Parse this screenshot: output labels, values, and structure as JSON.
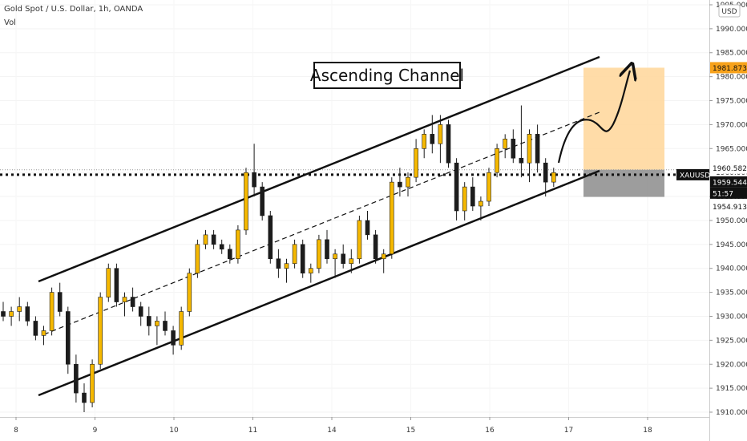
{
  "legend": {
    "symbol_line": "Gold Spot / U.S. Dollar, 1h, OANDA",
    "volume_label": "Vol"
  },
  "currency_button": "USD",
  "colors": {
    "bull": "#f5b800",
    "bear": "#1c1c1c",
    "target_zone": "#ffd699",
    "stop_zone": "#8c8c8c",
    "current_price_tag": "#111111",
    "target_price_tag": "#f7a21b"
  },
  "chart_data": {
    "type": "candlestick",
    "annotation_title": "Ascending Channel",
    "x_ticks": [
      "8",
      "9",
      "10",
      "11",
      "14",
      "15",
      "16",
      "17",
      "18"
    ],
    "y_ticks": [
      1995,
      1990,
      1985,
      1980,
      1975,
      1970,
      1965,
      1960,
      1955,
      1950,
      1945,
      1940,
      1935,
      1930,
      1925,
      1920,
      1915,
      1910
    ],
    "y_range": [
      1909,
      1996
    ],
    "price_labels": {
      "target": "1981.873",
      "upper_zone": "1960.582",
      "symbol": "XAUUSD",
      "current": "1959.544",
      "countdown": "51:57",
      "lower_zone": "1954.913"
    },
    "current_price": 1959.544,
    "upper_zone_price": 1960.582,
    "target_price": 1981.873,
    "lower_zone_price": 1954.913,
    "candles": [
      [
        1931,
        1933,
        1929,
        1930
      ],
      [
        1930,
        1932,
        1928,
        1931
      ],
      [
        1931,
        1934,
        1929,
        1932
      ],
      [
        1932,
        1933,
        1928,
        1929
      ],
      [
        1929,
        1930,
        1925,
        1926
      ],
      [
        1926,
        1928,
        1924,
        1927
      ],
      [
        1927,
        1936,
        1926,
        1935
      ],
      [
        1935,
        1937,
        1930,
        1931
      ],
      [
        1931,
        1932,
        1918,
        1920
      ],
      [
        1920,
        1922,
        1912,
        1914
      ],
      [
        1914,
        1916,
        1910,
        1912
      ],
      [
        1912,
        1921,
        1911,
        1920
      ],
      [
        1920,
        1935,
        1919,
        1934
      ],
      [
        1934,
        1941,
        1933,
        1940
      ],
      [
        1940,
        1941,
        1932,
        1933
      ],
      [
        1933,
        1935,
        1930,
        1934
      ],
      [
        1934,
        1936,
        1931,
        1932
      ],
      [
        1932,
        1933,
        1928,
        1930
      ],
      [
        1930,
        1932,
        1926,
        1928
      ],
      [
        1928,
        1930,
        1924,
        1929
      ],
      [
        1929,
        1931,
        1926,
        1927
      ],
      [
        1927,
        1928,
        1922,
        1924
      ],
      [
        1924,
        1932,
        1923,
        1931
      ],
      [
        1931,
        1940,
        1930,
        1939
      ],
      [
        1939,
        1946,
        1938,
        1945
      ],
      [
        1945,
        1948,
        1944,
        1947
      ],
      [
        1947,
        1948,
        1944,
        1945
      ],
      [
        1945,
        1946,
        1943,
        1944
      ],
      [
        1944,
        1945,
        1941,
        1942
      ],
      [
        1942,
        1949,
        1941,
        1948
      ],
      [
        1948,
        1961,
        1947,
        1960
      ],
      [
        1960,
        1966,
        1955,
        1957
      ],
      [
        1957,
        1958,
        1950,
        1951
      ],
      [
        1951,
        1952,
        1941,
        1942
      ],
      [
        1942,
        1944,
        1938,
        1940
      ],
      [
        1940,
        1942,
        1937,
        1941
      ],
      [
        1941,
        1946,
        1940,
        1945
      ],
      [
        1945,
        1946,
        1938,
        1939
      ],
      [
        1939,
        1941,
        1937,
        1940
      ],
      [
        1940,
        1947,
        1939,
        1946
      ],
      [
        1946,
        1948,
        1941,
        1942
      ],
      [
        1942,
        1944,
        1938,
        1943
      ],
      [
        1943,
        1945,
        1940,
        1941
      ],
      [
        1941,
        1944,
        1939,
        1942
      ],
      [
        1942,
        1951,
        1941,
        1950
      ],
      [
        1950,
        1952,
        1946,
        1947
      ],
      [
        1947,
        1948,
        1941,
        1942
      ],
      [
        1942,
        1944,
        1939,
        1943
      ],
      [
        1943,
        1959,
        1942,
        1958
      ],
      [
        1958,
        1961,
        1955,
        1957
      ],
      [
        1957,
        1960,
        1955,
        1959
      ],
      [
        1959,
        1967,
        1958,
        1965
      ],
      [
        1965,
        1969,
        1963,
        1968
      ],
      [
        1968,
        1972,
        1964,
        1966
      ],
      [
        1966,
        1972,
        1962,
        1970
      ],
      [
        1970,
        1971,
        1961,
        1962
      ],
      [
        1962,
        1963,
        1950,
        1952
      ],
      [
        1952,
        1958,
        1950,
        1957
      ],
      [
        1957,
        1959,
        1952,
        1953
      ],
      [
        1953,
        1955,
        1950,
        1954
      ],
      [
        1954,
        1961,
        1953,
        1960
      ],
      [
        1960,
        1966,
        1959,
        1965
      ],
      [
        1965,
        1968,
        1963,
        1967
      ],
      [
        1967,
        1969,
        1962,
        1963
      ],
      [
        1963,
        1974,
        1959,
        1962
      ],
      [
        1962,
        1969,
        1958,
        1968
      ],
      [
        1968,
        1970,
        1960,
        1962
      ],
      [
        1962,
        1963,
        1955,
        1958
      ],
      [
        1958,
        1961,
        1957,
        1960
      ]
    ]
  }
}
